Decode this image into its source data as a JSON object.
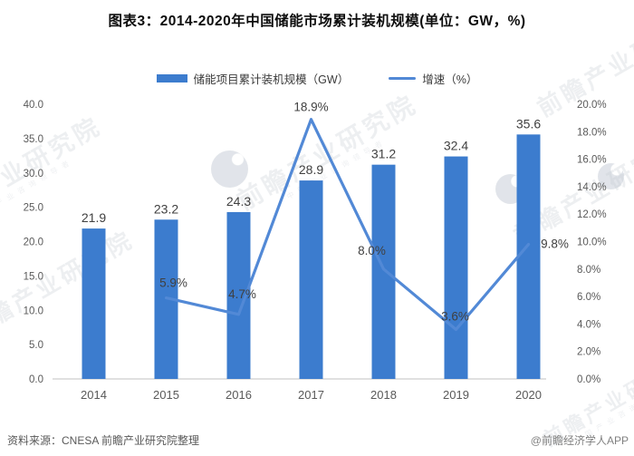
{
  "title": "图表3：2014-2020年中国储能市场累计装机规模(单位：GW，%)",
  "legend": [
    {
      "label": "储能项目累计装机规模（GW）",
      "swatch": "bar",
      "color": "#3C7CCE"
    },
    {
      "label": "增速（%）",
      "swatch": "line",
      "color": "#5289D6"
    }
  ],
  "watermark": {
    "text": "前瞻产业研究院",
    "subtext": "中国产业咨询领导者"
  },
  "footer": {
    "source": "资料来源：CNESA 前瞻产业研究院整理",
    "credit": "@前瞻经济学人APP"
  },
  "chart_data": {
    "type": "bar+line",
    "title": "图表3：2014-2020年中国储能市场累计装机规模(单位：GW，%)",
    "categories": [
      "2014",
      "2015",
      "2016",
      "2017",
      "2018",
      "2019",
      "2020"
    ],
    "series": [
      {
        "name": "储能项目累计装机规模（GW）",
        "type": "bar",
        "axis": "left",
        "color": "#3C7CCE",
        "values": [
          21.9,
          23.2,
          24.3,
          28.9,
          31.2,
          32.4,
          35.6
        ],
        "labels": [
          "21.9",
          "23.2",
          "24.3",
          "28.9",
          "31.2",
          "32.4",
          "35.6"
        ]
      },
      {
        "name": "增速（%）",
        "type": "line",
        "axis": "right",
        "color": "#5289D6",
        "values": [
          null,
          5.9,
          4.7,
          18.9,
          8.0,
          3.6,
          9.8
        ],
        "labels": [
          "",
          "5.9%",
          "4.7%",
          "18.9%",
          "8.0%",
          "3.6%",
          "9.8%"
        ],
        "label_offsets": [
          [
            0,
            0
          ],
          [
            8,
            -12
          ],
          [
            4,
            -18
          ],
          [
            0,
            -9
          ],
          [
            -13,
            -16
          ],
          [
            -1,
            -10
          ],
          [
            29,
            4
          ]
        ]
      }
    ],
    "left_axis": {
      "min": 0,
      "max": 40,
      "ticks": [
        "0.0",
        "5.0",
        "10.0",
        "15.0",
        "20.0",
        "25.0",
        "30.0",
        "35.0",
        "40.0"
      ]
    },
    "right_axis": {
      "min": 0,
      "max": 20,
      "ticks": [
        "0.0%",
        "2.0%",
        "4.0%",
        "6.0%",
        "8.0%",
        "10.0%",
        "12.0%",
        "14.0%",
        "16.0%",
        "18.0%",
        "20.0%"
      ]
    },
    "grid": false,
    "legend_position": "top"
  }
}
